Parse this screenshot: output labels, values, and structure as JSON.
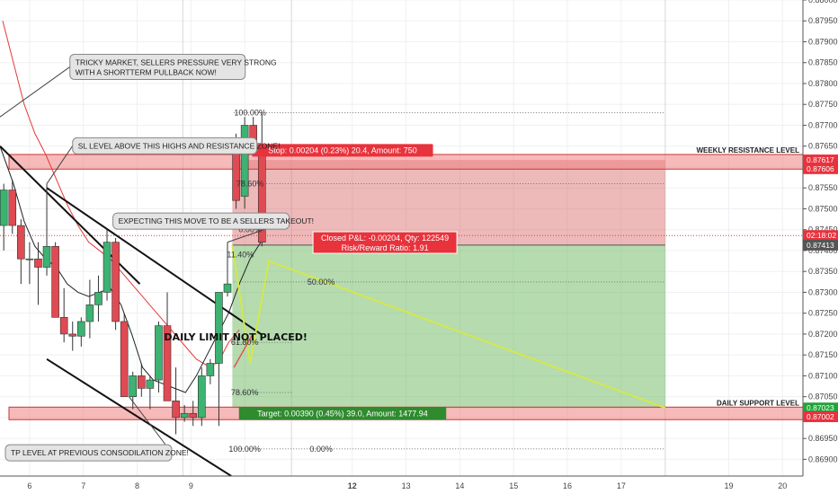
{
  "chart_data": {
    "type": "candlestick",
    "ylim": [
      0.8686,
      0.88
    ],
    "xlim": [
      5.45,
      20.38
    ],
    "grid": true,
    "y_ticks": [
      0.88,
      0.8795,
      0.879,
      0.8785,
      0.878,
      0.8775,
      0.877,
      0.8765,
      0.876,
      0.8755,
      0.875,
      0.8745,
      0.874,
      0.8735,
      0.873,
      0.8725,
      0.872,
      0.8715,
      0.871,
      0.8705,
      0.87,
      0.8695,
      0.869
    ],
    "y_tick_labels": [
      "0.88000",
      "0.87950",
      "0.87900",
      "0.87850",
      "0.87800",
      "0.87750",
      "0.87700",
      "0.87650",
      "0.87600",
      "0.87550",
      "0.87500",
      "0.87450",
      "0.87400",
      "0.87350",
      "0.87300",
      "0.87250",
      "0.87200",
      "0.87150",
      "0.87100",
      "0.87050",
      "0.87000",
      "0.86950",
      "0.86900"
    ],
    "x_ticks": [
      6,
      7,
      8,
      9,
      10,
      12,
      13,
      14,
      15,
      16,
      17,
      19,
      20
    ],
    "x_tick_labels": [
      "6",
      "7",
      "8",
      "9",
      "",
      "12",
      "13",
      "14",
      "15",
      "16",
      "17",
      "19",
      "20"
    ],
    "highlighted_x_tick": "12",
    "ohlc": [
      {
        "x": 5.52,
        "o": 0.8746,
        "h": 0.8756,
        "l": 0.874,
        "c": 0.87545
      },
      {
        "x": 5.68,
        "o": 0.87545,
        "h": 0.8757,
        "l": 0.8744,
        "c": 0.8746
      },
      {
        "x": 5.84,
        "o": 0.8746,
        "h": 0.87475,
        "l": 0.8732,
        "c": 0.8738
      },
      {
        "x": 6.0,
        "o": 0.8738,
        "h": 0.8742,
        "l": 0.8732,
        "c": 0.8738
      },
      {
        "x": 6.16,
        "o": 0.8738,
        "h": 0.8742,
        "l": 0.8727,
        "c": 0.8736
      },
      {
        "x": 6.32,
        "o": 0.8736,
        "h": 0.8756,
        "l": 0.8734,
        "c": 0.8741
      },
      {
        "x": 6.48,
        "o": 0.8741,
        "h": 0.8742,
        "l": 0.8724,
        "c": 0.8724
      },
      {
        "x": 6.64,
        "o": 0.8724,
        "h": 0.8731,
        "l": 0.8718,
        "c": 0.872
      },
      {
        "x": 6.8,
        "o": 0.872,
        "h": 0.8723,
        "l": 0.8716,
        "c": 0.87195
      },
      {
        "x": 6.96,
        "o": 0.87195,
        "h": 0.8724,
        "l": 0.8717,
        "c": 0.8723
      },
      {
        "x": 7.12,
        "o": 0.8723,
        "h": 0.8733,
        "l": 0.8719,
        "c": 0.8727
      },
      {
        "x": 7.28,
        "o": 0.8727,
        "h": 0.8734,
        "l": 0.8723,
        "c": 0.873
      },
      {
        "x": 7.44,
        "o": 0.873,
        "h": 0.8745,
        "l": 0.8728,
        "c": 0.8742
      },
      {
        "x": 7.6,
        "o": 0.8742,
        "h": 0.8743,
        "l": 0.8721,
        "c": 0.8723
      },
      {
        "x": 7.76,
        "o": 0.8723,
        "h": 0.8725,
        "l": 0.8705,
        "c": 0.8705
      },
      {
        "x": 7.92,
        "o": 0.8705,
        "h": 0.8711,
        "l": 0.8702,
        "c": 0.871
      },
      {
        "x": 8.08,
        "o": 0.871,
        "h": 0.8713,
        "l": 0.8705,
        "c": 0.8707
      },
      {
        "x": 8.24,
        "o": 0.8707,
        "h": 0.871,
        "l": 0.8702,
        "c": 0.8709
      },
      {
        "x": 8.4,
        "o": 0.8709,
        "h": 0.8723,
        "l": 0.8706,
        "c": 0.8722
      },
      {
        "x": 8.56,
        "o": 0.8722,
        "h": 0.873,
        "l": 0.8704,
        "c": 0.8704
      },
      {
        "x": 8.72,
        "o": 0.8704,
        "h": 0.8712,
        "l": 0.8696,
        "c": 0.87
      },
      {
        "x": 8.88,
        "o": 0.87,
        "h": 0.8703,
        "l": 0.8699,
        "c": 0.8701
      },
      {
        "x": 9.04,
        "o": 0.8701,
        "h": 0.8704,
        "l": 0.8698,
        "c": 0.87
      },
      {
        "x": 9.2,
        "o": 0.87,
        "h": 0.8712,
        "l": 0.8698,
        "c": 0.871
      },
      {
        "x": 9.36,
        "o": 0.871,
        "h": 0.8714,
        "l": 0.8708,
        "c": 0.8713
      },
      {
        "x": 9.52,
        "o": 0.8713,
        "h": 0.873,
        "l": 0.8698,
        "c": 0.873
      },
      {
        "x": 9.68,
        "o": 0.873,
        "h": 0.8742,
        "l": 0.8729,
        "c": 0.8732
      },
      {
        "x": 9.84,
        "o": 0.8764,
        "h": 0.8768,
        "l": 0.875,
        "c": 0.8752
      },
      {
        "x": 10.0,
        "o": 0.8753,
        "h": 0.8772,
        "l": 0.875,
        "c": 0.877
      },
      {
        "x": 10.16,
        "o": 0.877,
        "h": 0.8772,
        "l": 0.8764,
        "c": 0.8764
      },
      {
        "x": 10.32,
        "o": 0.8763,
        "h": 0.8773,
        "l": 0.8741,
        "c": 0.8742
      }
    ],
    "ma_red": [
      [
        5.5,
        0.8795
      ],
      [
        5.7,
        0.8785
      ],
      [
        5.9,
        0.8775
      ],
      [
        6.1,
        0.8768
      ],
      [
        6.3,
        0.8763
      ],
      [
        6.5,
        0.8757
      ],
      [
        6.7,
        0.8751
      ],
      [
        6.9,
        0.8746
      ],
      [
        7.1,
        0.8742
      ],
      [
        7.3,
        0.874
      ],
      [
        7.5,
        0.8738
      ],
      [
        7.7,
        0.8735
      ],
      [
        7.9,
        0.8732
      ],
      [
        8.1,
        0.8729
      ],
      [
        8.3,
        0.8726
      ],
      [
        8.5,
        0.8723
      ],
      [
        8.7,
        0.872
      ],
      [
        8.9,
        0.8717
      ],
      [
        9.1,
        0.8714
      ],
      [
        9.3,
        0.87125
      ],
      [
        9.5,
        0.8713
      ],
      [
        9.7,
        0.8718
      ],
      [
        9.9,
        0.8721
      ]
    ],
    "ma_black": [
      [
        5.45,
        0.8765
      ],
      [
        5.7,
        0.8756
      ],
      [
        5.9,
        0.8747
      ],
      [
        6.1,
        0.8741
      ],
      [
        6.3,
        0.8738
      ],
      [
        6.5,
        0.8736
      ],
      [
        6.7,
        0.8732
      ],
      [
        6.9,
        0.873
      ],
      [
        7.1,
        0.8729
      ],
      [
        7.3,
        0.873
      ],
      [
        7.5,
        0.8731
      ],
      [
        7.7,
        0.8727
      ],
      [
        7.9,
        0.872
      ],
      [
        8.1,
        0.8712
      ],
      [
        8.3,
        0.8709
      ],
      [
        8.5,
        0.8708
      ],
      [
        8.7,
        0.8707
      ],
      [
        8.9,
        0.8706
      ],
      [
        9.1,
        0.871
      ],
      [
        9.3,
        0.8715
      ],
      [
        9.5,
        0.872
      ],
      [
        9.7,
        0.8725
      ],
      [
        9.9,
        0.8732
      ],
      [
        10.1,
        0.8738
      ],
      [
        10.3,
        0.8742
      ]
    ],
    "channel_lines": [
      {
        "x1": 5.45,
        "y1": 0.8765,
        "x2": 8.05,
        "y2": 0.8732
      },
      {
        "x1": 6.32,
        "y1": 0.8755,
        "x2": 10.3,
        "y2": 0.872
      },
      {
        "x1": 6.32,
        "y1": 0.8714,
        "x2": 9.75,
        "y2": 0.8686
      }
    ],
    "resistance_zone": {
      "from": 0.87595,
      "to": 0.8763,
      "label": "WEEKLY RESISTANCE LEVEL"
    },
    "support_zone": {
      "from": 0.86995,
      "to": 0.87025,
      "label": "DAILY SUPPORT LEVEL"
    },
    "position": {
      "x_start": 9.77,
      "x_end": 17.82,
      "entry": 0.87413,
      "stop": 0.87617,
      "target": 0.87023,
      "stop_label": "Stop: 0.00204 (0.23%) 20.4, Amount: 750",
      "target_label": "Target: 0.00390 (0.45%) 39.0, Amount: 1477.94",
      "pnl_label": "Closed P&L: -0.00204, Qty: 122549",
      "rr_label": "Risk/Reward Ratio: 1.91"
    },
    "fib_upper": {
      "x_start": 9.8,
      "x_end": 10.45,
      "levels": [
        {
          "price": 0.8773,
          "label": "100.00%"
        },
        {
          "price": 0.8756,
          "label": "78.60%"
        },
        {
          "price": 0.8745,
          "label": "0.00%"
        }
      ]
    },
    "fib_lower": {
      "x_start": 9.8,
      "x_end": 10.45,
      "levels": [
        {
          "price": 0.8718,
          "label": "61.80%"
        },
        {
          "price": 0.8706,
          "label": "78.60%"
        },
        {
          "price": 0.86925,
          "label": "100.00%"
        }
      ]
    },
    "fib_mid_labels": [
      {
        "price": 0.8739,
        "label": "11.40%",
        "color": "#22aa22"
      },
      {
        "price": 0.87325,
        "label": "50.00%",
        "color": "#333333"
      },
      {
        "price": 0.86925,
        "label": "0.00%",
        "color": "#777777"
      }
    ],
    "projection_path": [
      [
        9.77,
        0.87413
      ],
      [
        10.1,
        0.8713
      ],
      [
        10.45,
        0.87375
      ],
      [
        17.82,
        0.87023
      ]
    ],
    "arrow_path": [
      [
        9.8,
        0.8712
      ],
      [
        10.15,
        0.872
      ]
    ],
    "current_price": {
      "value": "0.87413",
      "price": 0.87413,
      "countdown": "02:18:02",
      "countdown_price": 0.87436
    },
    "axis_badges": [
      {
        "value": "0.87617",
        "price": 0.87617,
        "color": "#e8323c"
      },
      {
        "value": "0.87606",
        "price": 0.87596,
        "color": "#e8323c"
      },
      {
        "value": "0.87023",
        "price": 0.87023,
        "color": "#22a33a"
      },
      {
        "value": "0.87002",
        "price": 0.87002,
        "color": "#e8323c"
      }
    ],
    "daily_limit_text": "DAILY LIMIT NOT PLACED!",
    "annotations": [
      {
        "text1": "TRICKY MARKET, SELLERS PRESSURE VERY STRONG",
        "text2": "WITH A SHORTTERM PULLBACK NOW!",
        "x": 6.75,
        "price": 0.8787,
        "w": 195,
        "tail_x": 5.45,
        "tail_price": 0.8772
      },
      {
        "text1": "SL LEVEL ABOVE THIS HIGHS AND RESISTANCE ZONE!",
        "text2": "",
        "x": 6.8,
        "price": 0.8767,
        "w": 205,
        "tail_x": 6.32,
        "tail_price": 0.8756
      },
      {
        "text1": "EXPECTING THIS MOVE TO BE A SELLERS TAKEOUT!",
        "text2": "",
        "x": 7.55,
        "price": 0.8749,
        "w": 196,
        "tail_x": 9.68,
        "tail_price": 0.8742
      },
      {
        "text1": "TP LEVEL AT PREVIOUS CONSODILATION ZONE!",
        "text2": "",
        "x": 5.55,
        "price": 0.86935,
        "w": 185,
        "tail_x": 7.85,
        "tail_price": 0.8705
      }
    ]
  }
}
